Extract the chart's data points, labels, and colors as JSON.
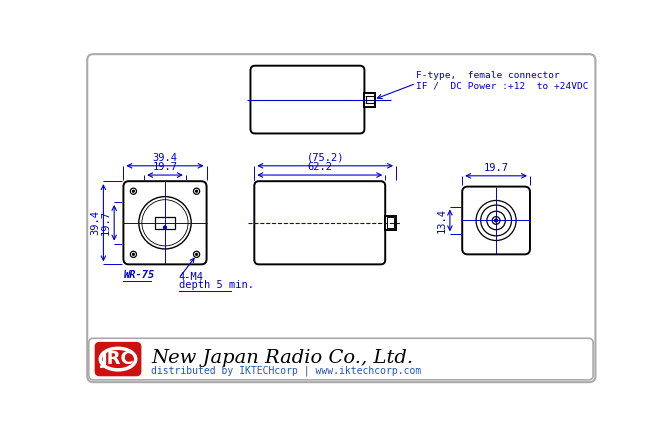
{
  "bg_color": "#ffffff",
  "body_color": "#000000",
  "dim_color": "#0000cc",
  "connector_label1": "F-type,  female connector",
  "connector_label2": "IF /  DC Power :+12  to +24VDC",
  "dim_39_4": "39.4",
  "dim_19_7_w": "19.7",
  "dim_19_7_h": "19.7",
  "dim_39_4_h": "39.4",
  "dim_75_2": "(75.2)",
  "dim_62_2": "62.2",
  "dim_19_7_r": "19.7",
  "dim_13_4": "13.4",
  "label_wr75": "WR-75",
  "label_4m4": "4-M4",
  "label_depth": "depth 5 min.",
  "title_text": "New Japan Radio Co., Ltd.",
  "subtitle_text": "distributed by IKTECHcorp | www.iktechcorp.com",
  "jrc_bg": "#cc1111",
  "jrc_text": "JRC",
  "outer_border_color": "#aaaaaa",
  "footer_border_color": "#aaaaaa"
}
